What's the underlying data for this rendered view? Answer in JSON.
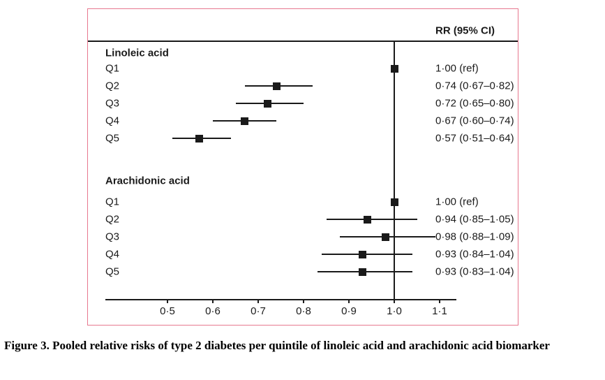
{
  "figure": {
    "caption": "Figure 3. Pooled relative risks of type 2 diabetes per quintile of linoleic acid and arachidonic acid biomarker"
  },
  "colors": {
    "panel_border": "#e7788f",
    "marker": "#1a1a1a",
    "axis": "#1a1a1a"
  },
  "chart_data": {
    "type": "scatter",
    "subtype": "forest-plot",
    "header": "RR (95% CI)",
    "xlim": [
      0.5,
      1.1
    ],
    "reference_line": 1.0,
    "x_ticks": [
      0.5,
      0.6,
      0.7,
      0.8,
      0.9,
      1.0,
      1.1
    ],
    "x_tick_labels": [
      "0·5",
      "0·6",
      "0·7",
      "0·8",
      "0·9",
      "1·0",
      "1·1"
    ],
    "grid": false,
    "legend": "none",
    "groups": [
      {
        "label": "Linoleic acid",
        "rows": [
          {
            "label": "Q1",
            "rr": 1.0,
            "lo": null,
            "hi": null,
            "text": "1·00 (ref)"
          },
          {
            "label": "Q2",
            "rr": 0.74,
            "lo": 0.67,
            "hi": 0.82,
            "text": "0·74 (0·67–0·82)"
          },
          {
            "label": "Q3",
            "rr": 0.72,
            "lo": 0.65,
            "hi": 0.8,
            "text": "0·72 (0·65–0·80)"
          },
          {
            "label": "Q4",
            "rr": 0.67,
            "lo": 0.6,
            "hi": 0.74,
            "text": "0·67 (0·60–0·74)"
          },
          {
            "label": "Q5",
            "rr": 0.57,
            "lo": 0.51,
            "hi": 0.64,
            "text": "0·57 (0·51–0·64)"
          }
        ]
      },
      {
        "label": "Arachidonic acid",
        "rows": [
          {
            "label": "Q1",
            "rr": 1.0,
            "lo": null,
            "hi": null,
            "text": "1·00 (ref)"
          },
          {
            "label": "Q2",
            "rr": 0.94,
            "lo": 0.85,
            "hi": 1.05,
            "text": "0·94 (0·85–1·05)"
          },
          {
            "label": "Q3",
            "rr": 0.98,
            "lo": 0.88,
            "hi": 1.09,
            "text": "0·98 (0·88–1·09)"
          },
          {
            "label": "Q4",
            "rr": 0.93,
            "lo": 0.84,
            "hi": 1.04,
            "text": "0·93 (0·84–1·04)"
          },
          {
            "label": "Q5",
            "rr": 0.93,
            "lo": 0.83,
            "hi": 1.04,
            "text": "0·93 (0·83–1·04)"
          }
        ]
      }
    ]
  }
}
